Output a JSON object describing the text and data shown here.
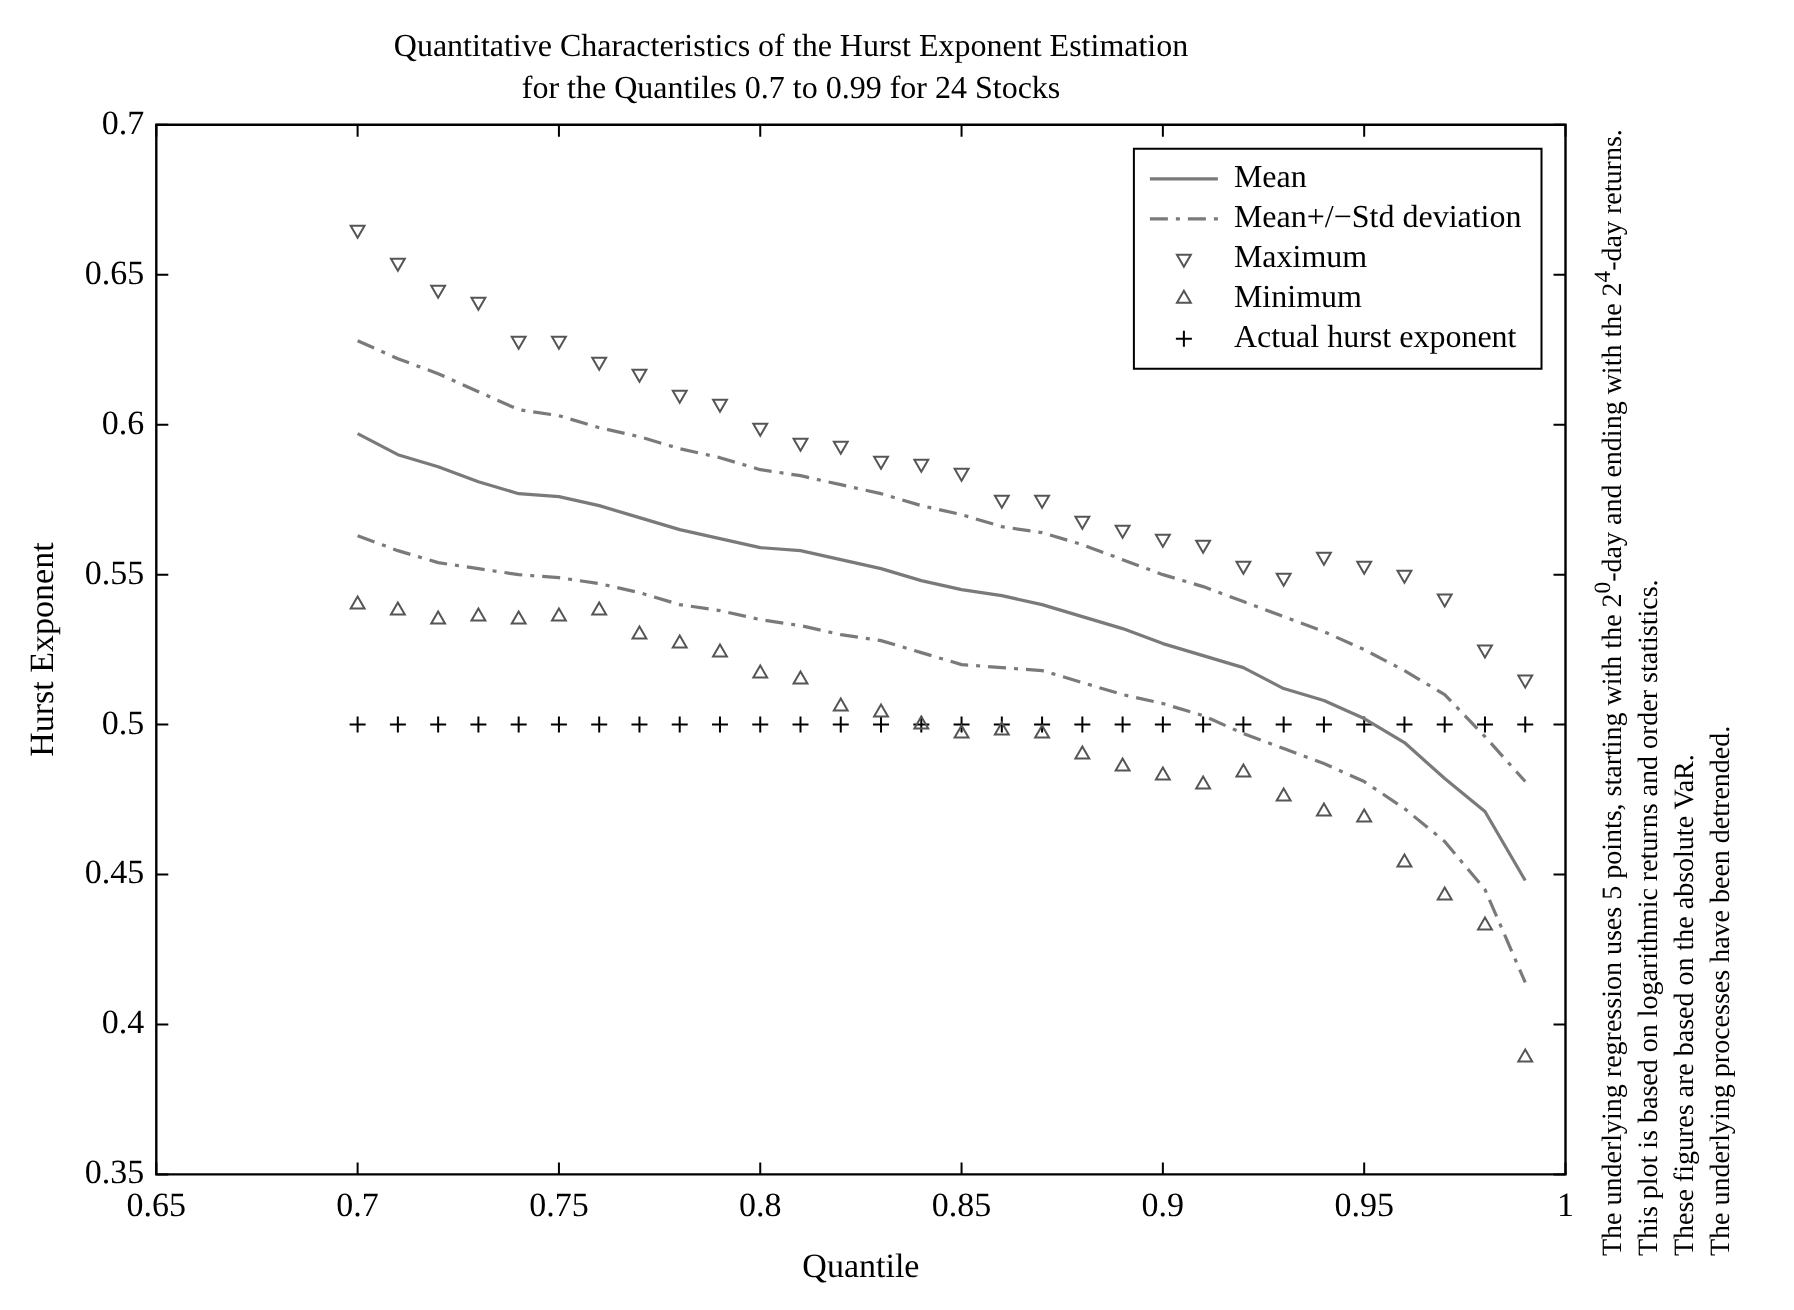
{
  "chart_data": {
    "type": "line",
    "title": "Quantitative Characteristics of the Hurst Exponent Estimation",
    "subtitle": "for the Quantiles 0.7 to 0.99 for 24 Stocks",
    "xlabel": "Quantile",
    "ylabel": "Hurst Exponent",
    "x": [
      0.7,
      0.71,
      0.72,
      0.73,
      0.74,
      0.75,
      0.76,
      0.77,
      0.78,
      0.79,
      0.8,
      0.81,
      0.82,
      0.83,
      0.84,
      0.85,
      0.86,
      0.87,
      0.88,
      0.89,
      0.9,
      0.91,
      0.92,
      0.93,
      0.94,
      0.95,
      0.96,
      0.97,
      0.98,
      0.99
    ],
    "series": [
      {
        "name": "Mean",
        "type": "line",
        "color": "#7a7a7a",
        "line_style": "solid",
        "marker": "none",
        "values": [
          0.597,
          0.59,
          0.586,
          0.581,
          0.577,
          0.576,
          0.573,
          0.569,
          0.565,
          0.562,
          0.559,
          0.558,
          0.555,
          0.552,
          0.548,
          0.545,
          0.543,
          0.54,
          0.536,
          0.532,
          0.527,
          0.523,
          0.519,
          0.512,
          0.508,
          0.502,
          0.494,
          0.482,
          0.471,
          0.448
        ]
      },
      {
        "name": "Mean+/−Std deviation",
        "type": "line",
        "color": "#7a7a7a",
        "line_style": "dashed",
        "marker": "none",
        "values": [
          0.628,
          0.622,
          0.617,
          0.611,
          0.605,
          0.603,
          0.599,
          0.596,
          0.592,
          0.589,
          0.585,
          0.583,
          0.58,
          0.577,
          0.573,
          0.57,
          0.566,
          0.564,
          0.56,
          0.555,
          0.55,
          0.546,
          0.541,
          0.536,
          0.531,
          0.525,
          0.518,
          0.51,
          0.496,
          0.481
        ]
      },
      {
        "type": "line",
        "color": "#7a7a7a",
        "line_style": "dashed",
        "marker": "none",
        "values": [
          0.563,
          0.558,
          0.554,
          0.552,
          0.55,
          0.549,
          0.547,
          0.544,
          0.54,
          0.538,
          0.535,
          0.533,
          0.53,
          0.528,
          0.524,
          0.52,
          0.519,
          0.518,
          0.514,
          0.51,
          0.507,
          0.503,
          0.497,
          0.492,
          0.487,
          0.481,
          0.472,
          0.461,
          0.445,
          0.414
        ]
      },
      {
        "name": "Maximum",
        "type": "scatter",
        "color": "#555555",
        "marker": "triangle_down",
        "values": [
          0.665,
          0.654,
          0.645,
          0.641,
          0.628,
          0.628,
          0.621,
          0.617,
          0.61,
          0.607,
          0.599,
          0.594,
          0.593,
          0.588,
          0.587,
          0.584,
          0.575,
          0.575,
          0.568,
          0.565,
          0.562,
          0.56,
          0.553,
          0.549,
          0.556,
          0.553,
          0.55,
          0.542,
          0.525,
          0.515
        ]
      },
      {
        "name": "Minimum",
        "type": "scatter",
        "color": "#555555",
        "marker": "triangle",
        "values": [
          0.54,
          0.538,
          0.535,
          0.536,
          0.535,
          0.536,
          0.538,
          0.53,
          0.527,
          0.524,
          0.517,
          0.515,
          0.506,
          0.504,
          0.5,
          0.497,
          0.498,
          0.497,
          0.49,
          0.486,
          0.483,
          0.48,
          0.484,
          0.476,
          0.471,
          0.469,
          0.454,
          0.443,
          0.433,
          0.389
        ]
      },
      {
        "name": "Actual hurst exponent",
        "type": "scatter",
        "color": "#000000",
        "marker": "cross",
        "values": [
          0.5,
          0.5,
          0.5,
          0.5,
          0.5,
          0.5,
          0.5,
          0.5,
          0.5,
          0.5,
          0.5,
          0.5,
          0.5,
          0.5,
          0.5,
          0.5,
          0.5,
          0.5,
          0.5,
          0.5,
          0.5,
          0.5,
          0.5,
          0.5,
          0.5,
          0.5,
          0.5,
          0.5,
          0.5,
          0.5
        ]
      }
    ],
    "xlim": [
      0.65,
      1
    ],
    "xticks": [
      0.65,
      0.7,
      0.75,
      0.8,
      0.85,
      0.9,
      0.95,
      1
    ],
    "ylim": [
      0.35,
      0.7
    ],
    "yticks": [
      0.35,
      0.4,
      0.45,
      0.5,
      0.55,
      0.6,
      0.65,
      0.7
    ],
    "grid": false,
    "legend": "top right",
    "annotations": [
      "The underlying regression uses 5 points, starting with the 2$^{0}$-day and ending with the 2$^{4}$-day returns.",
      "This plot is based on logarithmic returns and order statistics.",
      "These figures are based on the absolute VaR.",
      "The underlying processes have been detrended."
    ]
  }
}
